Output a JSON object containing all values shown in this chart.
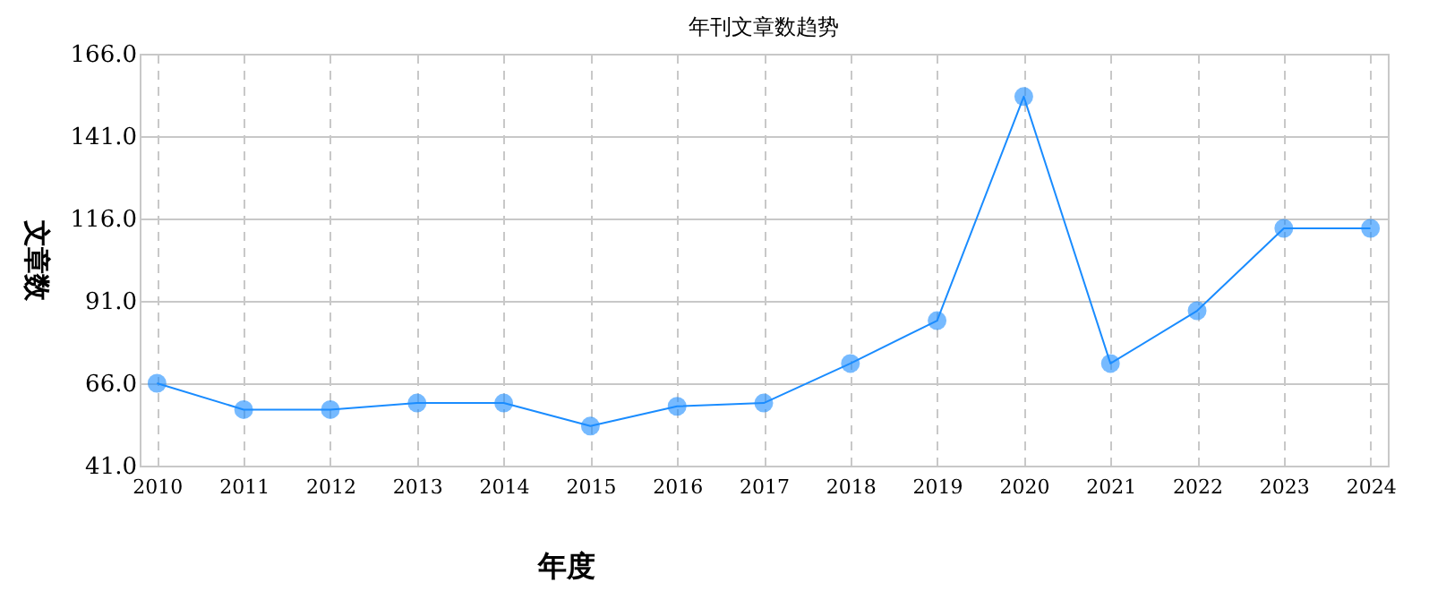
{
  "chart_data": {
    "type": "line",
    "title": "年刊文章数趋势",
    "xlabel": "年度",
    "ylabel": "文章数",
    "categories": [
      "2010",
      "2011",
      "2012",
      "2013",
      "2014",
      "2015",
      "2016",
      "2017",
      "2018",
      "2019",
      "2020",
      "2021",
      "2022",
      "2023",
      "2024"
    ],
    "series": [
      {
        "color": "#1a8cff",
        "values": [
          66,
          58,
          58,
          60,
          60,
          53,
          59,
          60,
          72,
          85,
          153,
          72,
          88,
          113,
          113
        ]
      }
    ],
    "ylim": [
      41,
      166
    ],
    "yticks": [
      {
        "value": 41,
        "label": "41.0"
      },
      {
        "value": 66,
        "label": "66.0"
      },
      {
        "value": 91,
        "label": "91.0"
      },
      {
        "value": 116,
        "label": "116.0"
      },
      {
        "value": 141,
        "label": "141.0"
      },
      {
        "value": 166,
        "label": "166.0"
      }
    ],
    "grid": true,
    "marker": "circle",
    "line_style": "solid"
  }
}
